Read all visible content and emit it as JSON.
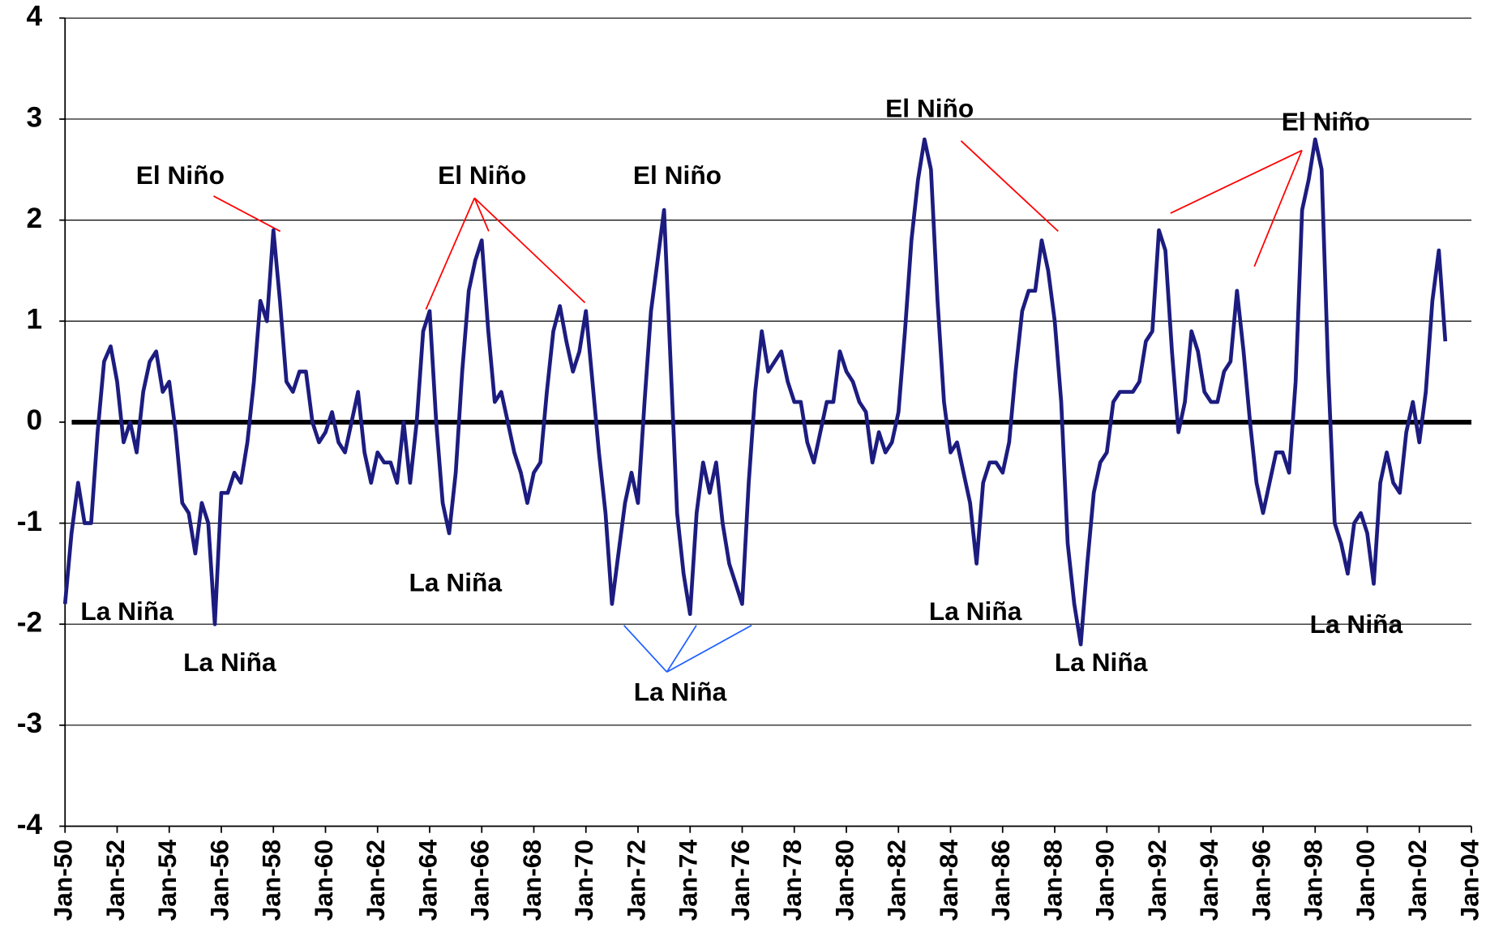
{
  "chart_data": {
    "type": "line",
    "annotations": [
      "El Niño",
      "El Niño",
      "El Niño",
      "El Niño",
      "El Niño",
      "La Niña",
      "La Niña",
      "La Niña",
      "La Niña",
      "La Niña",
      "La Niña",
      "La Niña"
    ],
    "x": [
      "1950-01",
      "1950-04",
      "1950-07",
      "1950-10",
      "1951-01",
      "1951-04",
      "1951-07",
      "1951-10",
      "1952-01",
      "1952-04",
      "1952-07",
      "1952-10",
      "1953-01",
      "1953-04",
      "1953-07",
      "1953-10",
      "1954-01",
      "1954-04",
      "1954-07",
      "1954-10",
      "1955-01",
      "1955-04",
      "1955-07",
      "1955-10",
      "1956-01",
      "1956-04",
      "1956-07",
      "1956-10",
      "1957-01",
      "1957-04",
      "1957-07",
      "1957-10",
      "1958-01",
      "1958-04",
      "1958-07",
      "1958-10",
      "1959-01",
      "1959-04",
      "1959-07",
      "1959-10",
      "1960-01",
      "1960-04",
      "1960-07",
      "1960-10",
      "1961-01",
      "1961-04",
      "1961-07",
      "1961-10",
      "1962-01",
      "1962-04",
      "1962-07",
      "1962-10",
      "1963-01",
      "1963-04",
      "1963-07",
      "1963-10",
      "1964-01",
      "1964-04",
      "1964-07",
      "1964-10",
      "1965-01",
      "1965-04",
      "1965-07",
      "1965-10",
      "1966-01",
      "1966-04",
      "1966-07",
      "1966-10",
      "1967-01",
      "1967-04",
      "1967-07",
      "1967-10",
      "1968-01",
      "1968-04",
      "1968-07",
      "1968-10",
      "1969-01",
      "1969-04",
      "1969-07",
      "1969-10",
      "1970-01",
      "1970-04",
      "1970-07",
      "1970-10",
      "1971-01",
      "1971-04",
      "1971-07",
      "1971-10",
      "1972-01",
      "1972-04",
      "1972-07",
      "1972-10",
      "1973-01",
      "1973-04",
      "1973-07",
      "1973-10",
      "1974-01",
      "1974-04",
      "1974-07",
      "1974-10",
      "1975-01",
      "1975-04",
      "1975-07",
      "1975-10",
      "1976-01",
      "1976-04",
      "1976-07",
      "1976-10",
      "1977-01",
      "1977-04",
      "1977-07",
      "1977-10",
      "1978-01",
      "1978-04",
      "1978-07",
      "1978-10",
      "1979-01",
      "1979-04",
      "1979-07",
      "1979-10",
      "1980-01",
      "1980-04",
      "1980-07",
      "1980-10",
      "1981-01",
      "1981-04",
      "1981-07",
      "1981-10",
      "1982-01",
      "1982-04",
      "1982-07",
      "1982-10",
      "1983-01",
      "1983-04",
      "1983-07",
      "1983-10",
      "1984-01",
      "1984-04",
      "1984-07",
      "1984-10",
      "1985-01",
      "1985-04",
      "1985-07",
      "1985-10",
      "1986-01",
      "1986-04",
      "1986-07",
      "1986-10",
      "1987-01",
      "1987-04",
      "1987-07",
      "1987-10",
      "1988-01",
      "1988-04",
      "1988-07",
      "1988-10",
      "1989-01",
      "1989-04",
      "1989-07",
      "1989-10",
      "1990-01",
      "1990-04",
      "1990-07",
      "1990-10",
      "1991-01",
      "1991-04",
      "1991-07",
      "1991-10",
      "1992-01",
      "1992-04",
      "1992-07",
      "1992-10",
      "1993-01",
      "1993-04",
      "1993-07",
      "1993-10",
      "1994-01",
      "1994-04",
      "1994-07",
      "1994-10",
      "1995-01",
      "1995-04",
      "1995-07",
      "1995-10",
      "1996-01",
      "1996-04",
      "1996-07",
      "1996-10",
      "1997-01",
      "1997-04",
      "1997-07",
      "1997-10",
      "1998-01",
      "1998-04",
      "1998-07",
      "1998-10",
      "1999-01",
      "1999-04",
      "1999-07",
      "1999-10",
      "2000-01",
      "2000-04",
      "2000-07",
      "2000-10",
      "2001-01",
      "2001-04",
      "2001-07",
      "2001-10",
      "2002-01",
      "2002-04",
      "2002-07",
      "2002-10",
      "2003-01"
    ],
    "series": [
      {
        "color": "#1c1c80",
        "values": [
          -1.8,
          -1.1,
          -0.6,
          -1.0,
          -1.0,
          -0.1,
          0.6,
          0.75,
          0.4,
          -0.2,
          0.0,
          -0.3,
          0.3,
          0.6,
          0.7,
          0.3,
          0.4,
          -0.1,
          -0.8,
          -0.9,
          -1.3,
          -0.8,
          -1.0,
          -2.0,
          -0.7,
          -0.7,
          -0.5,
          -0.6,
          -0.2,
          0.4,
          1.2,
          1.0,
          1.9,
          1.2,
          0.4,
          0.3,
          0.5,
          0.5,
          0.0,
          -0.2,
          -0.1,
          0.1,
          -0.2,
          -0.3,
          0.0,
          0.3,
          -0.3,
          -0.6,
          -0.3,
          -0.4,
          -0.4,
          -0.6,
          0.0,
          -0.6,
          0.0,
          0.9,
          1.1,
          0.0,
          -0.8,
          -1.1,
          -0.5,
          0.5,
          1.3,
          1.6,
          1.8,
          0.9,
          0.2,
          0.3,
          0.0,
          -0.3,
          -0.5,
          -0.8,
          -0.5,
          -0.4,
          0.3,
          0.9,
          1.15,
          0.8,
          0.5,
          0.7,
          1.1,
          0.4,
          -0.3,
          -0.9,
          -1.8,
          -1.3,
          -0.8,
          -0.5,
          -0.8,
          0.2,
          1.1,
          1.6,
          2.1,
          0.6,
          -0.9,
          -1.5,
          -1.9,
          -0.9,
          -0.4,
          -0.7,
          -0.4,
          -1.0,
          -1.4,
          -1.6,
          -1.8,
          -0.6,
          0.3,
          0.9,
          0.5,
          0.6,
          0.7,
          0.4,
          0.2,
          0.2,
          -0.2,
          -0.4,
          -0.1,
          0.2,
          0.2,
          0.7,
          0.5,
          0.4,
          0.2,
          0.1,
          -0.4,
          -0.1,
          -0.3,
          -0.2,
          0.1,
          0.9,
          1.8,
          2.4,
          2.8,
          2.5,
          1.2,
          0.2,
          -0.3,
          -0.2,
          -0.5,
          -0.8,
          -1.4,
          -0.6,
          -0.4,
          -0.4,
          -0.5,
          -0.2,
          0.5,
          1.1,
          1.3,
          1.3,
          1.8,
          1.5,
          1.0,
          0.2,
          -1.2,
          -1.8,
          -2.2,
          -1.4,
          -0.7,
          -0.4,
          -0.3,
          0.2,
          0.3,
          0.3,
          0.3,
          0.4,
          0.8,
          0.9,
          1.9,
          1.7,
          0.7,
          -0.1,
          0.2,
          0.9,
          0.7,
          0.3,
          0.2,
          0.2,
          0.5,
          0.6,
          1.3,
          0.7,
          0.0,
          -0.6,
          -0.9,
          -0.6,
          -0.3,
          -0.3,
          -0.5,
          0.4,
          2.1,
          2.4,
          2.8,
          2.5,
          0.5,
          -1.0,
          -1.2,
          -1.5,
          -1.0,
          -0.9,
          -1.1,
          -1.6,
          -0.6,
          -0.3,
          -0.6,
          -0.7,
          -0.1,
          0.2,
          -0.2,
          0.3,
          1.2,
          1.7,
          0.8
        ]
      }
    ],
    "xlim": [
      "1950-01",
      "2004-01"
    ],
    "xticks": [
      {
        "value": "1950-01",
        "label": "Jan-50"
      },
      {
        "value": "1952-01",
        "label": "Jan-52"
      },
      {
        "value": "1954-01",
        "label": "Jan-54"
      },
      {
        "value": "1956-01",
        "label": "Jan-56"
      },
      {
        "value": "1958-01",
        "label": "Jan-58"
      },
      {
        "value": "1960-01",
        "label": "Jan-60"
      },
      {
        "value": "1962-01",
        "label": "Jan-62"
      },
      {
        "value": "1964-01",
        "label": "Jan-64"
      },
      {
        "value": "1966-01",
        "label": "Jan-66"
      },
      {
        "value": "1968-01",
        "label": "Jan-68"
      },
      {
        "value": "1970-01",
        "label": "Jan-70"
      },
      {
        "value": "1972-01",
        "label": "Jan-72"
      },
      {
        "value": "1974-01",
        "label": "Jan-74"
      },
      {
        "value": "1976-01",
        "label": "Jan-76"
      },
      {
        "value": "1978-01",
        "label": "Jan-78"
      },
      {
        "value": "1980-01",
        "label": "Jan-80"
      },
      {
        "value": "1982-01",
        "label": "Jan-82"
      },
      {
        "value": "1984-01",
        "label": "Jan-84"
      },
      {
        "value": "1986-01",
        "label": "Jan-86"
      },
      {
        "value": "1988-01",
        "label": "Jan-88"
      },
      {
        "value": "1990-01",
        "label": "Jan-90"
      },
      {
        "value": "1992-01",
        "label": "Jan-92"
      },
      {
        "value": "1994-01",
        "label": "Jan-94"
      },
      {
        "value": "1996-01",
        "label": "Jan-96"
      },
      {
        "value": "1998-01",
        "label": "Jan-98"
      },
      {
        "value": "2000-01",
        "label": "Jan-00"
      },
      {
        "value": "2002-01",
        "label": "Jan-02"
      },
      {
        "value": "2004-01",
        "label": "Jan-04"
      }
    ],
    "ylim": [
      -4,
      4
    ],
    "yticks": [
      -4,
      -3,
      -2,
      -1,
      0,
      1,
      2,
      3,
      4
    ],
    "grid": true
  }
}
